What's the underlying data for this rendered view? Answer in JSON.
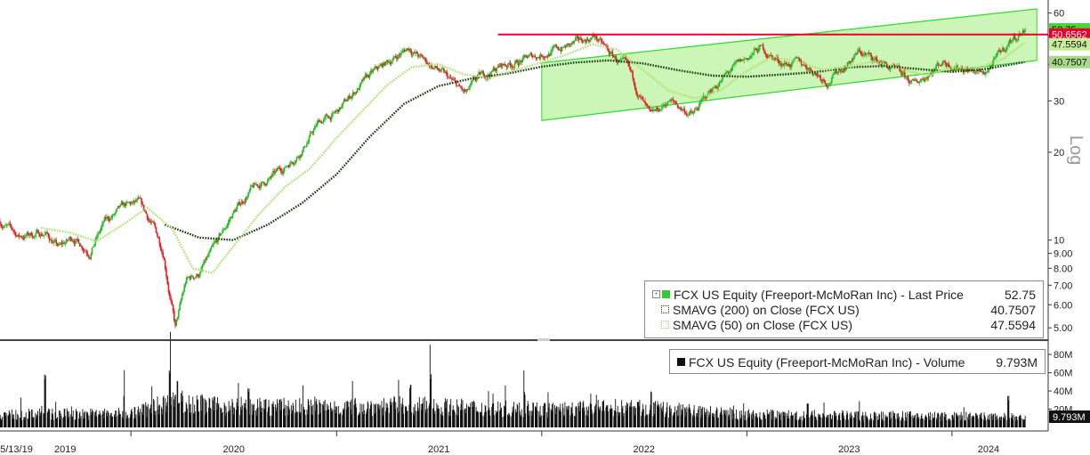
{
  "chart_data": [
    {
      "type": "line",
      "scale": "log",
      "axis_label": "Log",
      "ylim": [
        4.8,
        62
      ],
      "y_ticks": [
        5,
        6,
        7,
        8,
        9,
        10,
        20,
        30,
        40,
        50,
        60
      ],
      "y_tick_labels": [
        "5.00",
        "6.00",
        "7.00",
        "8.00",
        "9.00",
        "10",
        "20",
        "30",
        "40",
        "50",
        "60"
      ],
      "x_start_label": "05/13/19",
      "x_labels": [
        "2019",
        "2020",
        "2021",
        "2022",
        "2023",
        "2024"
      ],
      "x_range": [
        "2019-05-13",
        "2024-05-10"
      ],
      "resistance_line": {
        "value": 50.6562,
        "label": "50.6562",
        "from": "2021-10-15",
        "color": "#e8002a"
      },
      "channel": {
        "from": "2022-01-01",
        "upper": [
          [
            "2022-01-01",
            40.5
          ],
          [
            "2024-05-31",
            62.0
          ]
        ],
        "lower": [
          [
            "2022-01-01",
            25.7
          ],
          [
            "2024-05-31",
            41.3
          ]
        ],
        "fill": "#ccf5b8",
        "stroke": "#33dd33"
      },
      "badges": [
        {
          "value": 52.75,
          "label": "52.75",
          "color": "#4dd43a"
        },
        {
          "value": 50.6562,
          "label": "50.6562",
          "color": "#e8002a"
        },
        {
          "value": 47.5594,
          "label": "47.5594",
          "color": "#c9ee9a"
        },
        {
          "value": 40.7507,
          "label": "40.7507",
          "color": "#a9d98a"
        }
      ],
      "price_path": [
        [
          "2019-05-13",
          11.6
        ],
        [
          "2019-06-15",
          10.3
        ],
        [
          "2019-08-01",
          10.6
        ],
        [
          "2019-08-26",
          9.4
        ],
        [
          "2019-09-20",
          10.2
        ],
        [
          "2019-10-20",
          9.2
        ],
        [
          "2019-11-15",
          11.5
        ],
        [
          "2019-12-20",
          12.9
        ],
        [
          "2020-01-15",
          13.3
        ],
        [
          "2020-02-10",
          11.1
        ],
        [
          "2020-02-28",
          9.1
        ],
        [
          "2020-03-10",
          6.6
        ],
        [
          "2020-03-20",
          5.0
        ],
        [
          "2020-04-08",
          7.2
        ],
        [
          "2020-05-01",
          7.7
        ],
        [
          "2020-06-01",
          9.6
        ],
        [
          "2020-07-01",
          12.4
        ],
        [
          "2020-08-01",
          14.8
        ],
        [
          "2020-09-01",
          16.0
        ],
        [
          "2020-10-01",
          17.8
        ],
        [
          "2020-11-01",
          20.6
        ],
        [
          "2020-12-01",
          25.4
        ],
        [
          "2021-01-01",
          27.1
        ],
        [
          "2021-02-01",
          32.2
        ],
        [
          "2021-03-01",
          36.4
        ],
        [
          "2021-04-01",
          40.5
        ],
        [
          "2021-05-10",
          45.8
        ],
        [
          "2021-06-01",
          41.8
        ],
        [
          "2021-07-01",
          38.2
        ],
        [
          "2021-08-19",
          31.4
        ],
        [
          "2021-09-10",
          35.6
        ],
        [
          "2021-10-20",
          39.6
        ],
        [
          "2021-11-20",
          40.9
        ],
        [
          "2022-01-01",
          43.5
        ],
        [
          "2022-03-01",
          46.9
        ],
        [
          "2022-04-05",
          50.2
        ],
        [
          "2022-05-01",
          43.6
        ],
        [
          "2022-06-01",
          38.9
        ],
        [
          "2022-07-14",
          25.9
        ],
        [
          "2022-08-15",
          30.1
        ],
        [
          "2022-09-27",
          26.8
        ],
        [
          "2022-11-01",
          33.2
        ],
        [
          "2022-12-01",
          37.6
        ],
        [
          "2023-01-25",
          45.5
        ],
        [
          "2023-03-01",
          40.8
        ],
        [
          "2023-04-15",
          39.9
        ],
        [
          "2023-05-25",
          35.2
        ],
        [
          "2023-07-20",
          44.1
        ],
        [
          "2023-09-01",
          40.2
        ],
        [
          "2023-10-26",
          34.0
        ],
        [
          "2023-12-15",
          41.2
        ],
        [
          "2024-01-20",
          39.3
        ],
        [
          "2024-02-25",
          36.9
        ],
        [
          "2024-03-15",
          40.5
        ],
        [
          "2024-04-15",
          48.5
        ],
        [
          "2024-05-10",
          52.75
        ]
      ],
      "sma200_path": [
        [
          "2020-03-01",
          11.3
        ],
        [
          "2020-05-01",
          10.2
        ],
        [
          "2020-07-01",
          10.0
        ],
        [
          "2020-09-01",
          11.3
        ],
        [
          "2020-11-01",
          13.4
        ],
        [
          "2021-01-01",
          16.8
        ],
        [
          "2021-03-01",
          22.6
        ],
        [
          "2021-05-01",
          29.3
        ],
        [
          "2021-07-01",
          33.7
        ],
        [
          "2021-09-01",
          35.9
        ],
        [
          "2021-11-01",
          37.2
        ],
        [
          "2022-01-01",
          39.3
        ],
        [
          "2022-03-01",
          40.6
        ],
        [
          "2022-05-01",
          41.3
        ],
        [
          "2022-07-01",
          40.3
        ],
        [
          "2022-09-01",
          38.2
        ],
        [
          "2022-11-01",
          36.6
        ],
        [
          "2023-01-01",
          36.3
        ],
        [
          "2023-03-01",
          36.9
        ],
        [
          "2023-05-01",
          37.6
        ],
        [
          "2023-07-01",
          39.1
        ],
        [
          "2023-09-01",
          39.5
        ],
        [
          "2023-11-01",
          38.6
        ],
        [
          "2024-01-01",
          37.7
        ],
        [
          "2024-03-01",
          38.6
        ],
        [
          "2024-05-10",
          40.7507
        ]
      ],
      "sma50_path": [
        [
          "2019-07-25",
          11.0
        ],
        [
          "2019-09-15",
          10.6
        ],
        [
          "2019-11-01",
          9.9
        ],
        [
          "2019-12-15",
          11.2
        ],
        [
          "2020-01-30",
          12.9
        ],
        [
          "2020-03-15",
          10.9
        ],
        [
          "2020-04-20",
          8.0
        ],
        [
          "2020-05-25",
          7.7
        ],
        [
          "2020-07-01",
          9.5
        ],
        [
          "2020-08-15",
          12.2
        ],
        [
          "2020-10-01",
          15.2
        ],
        [
          "2020-11-15",
          17.6
        ],
        [
          "2021-01-01",
          22.4
        ],
        [
          "2021-02-15",
          27.6
        ],
        [
          "2021-04-01",
          34.0
        ],
        [
          "2021-05-15",
          39.2
        ],
        [
          "2021-07-01",
          40.1
        ],
        [
          "2021-08-15",
          37.0
        ],
        [
          "2021-10-01",
          35.9
        ],
        [
          "2021-11-15",
          38.3
        ],
        [
          "2022-01-01",
          40.6
        ],
        [
          "2022-02-15",
          43.3
        ],
        [
          "2022-04-01",
          46.9
        ],
        [
          "2022-05-15",
          45.0
        ],
        [
          "2022-07-01",
          38.2
        ],
        [
          "2022-08-15",
          32.5
        ],
        [
          "2022-10-01",
          30.6
        ],
        [
          "2022-11-15",
          32.6
        ],
        [
          "2023-01-01",
          37.9
        ],
        [
          "2023-02-15",
          42.5
        ],
        [
          "2023-04-01",
          40.9
        ],
        [
          "2023-05-15",
          38.4
        ],
        [
          "2023-07-01",
          39.3
        ],
        [
          "2023-08-15",
          41.0
        ],
        [
          "2023-10-01",
          38.7
        ],
        [
          "2023-11-15",
          36.7
        ],
        [
          "2024-01-01",
          39.0
        ],
        [
          "2024-02-15",
          38.8
        ],
        [
          "2024-04-01",
          41.8
        ],
        [
          "2024-05-10",
          47.5594
        ]
      ],
      "series": [
        {
          "name": "FCX US Equity (Freeport-McMoRan Inc) - Last Price",
          "value_label": "52.75",
          "color": "#22cc22"
        },
        {
          "name": "SMAVG (200)  on Close (FCX US)",
          "value_label": "40.7507",
          "color": "#1e3a10"
        },
        {
          "name": "SMAVG (50)  on Close (FCX US)",
          "value_label": "47.5594",
          "color": "#b0e070"
        }
      ]
    },
    {
      "type": "bar",
      "ylim": [
        0,
        85
      ],
      "y_ticks": [
        0,
        20,
        40,
        60,
        80
      ],
      "y_tick_labels": [
        "0",
        "20M",
        "40M",
        "60M",
        "80M"
      ],
      "last_label": "9.793M",
      "base_level_m": [
        [
          "2019-05-13",
          14
        ],
        [
          "2020-01-01",
          15
        ],
        [
          "2020-03-20",
          30
        ],
        [
          "2020-06-01",
          23
        ],
        [
          "2021-01-01",
          22
        ],
        [
          "2021-05-01",
          24
        ],
        [
          "2022-01-01",
          19
        ],
        [
          "2022-06-01",
          22
        ],
        [
          "2023-01-01",
          14
        ],
        [
          "2024-01-01",
          12
        ],
        [
          "2024-05-10",
          11
        ]
      ],
      "spikes_m": [
        [
          "2019-08-01",
          62
        ],
        [
          "2019-12-20",
          40
        ],
        [
          "2020-03-10",
          70
        ],
        [
          "2020-03-23",
          58
        ],
        [
          "2020-07-28",
          45
        ],
        [
          "2021-05-12",
          48
        ],
        [
          "2021-06-17",
          62
        ],
        [
          "2021-12-01",
          42
        ],
        [
          "2022-07-15",
          40
        ],
        [
          "2023-04-19",
          30
        ],
        [
          "2024-04-10",
          35
        ]
      ],
      "series": [
        {
          "name": "FCX US Equity (Freeport-McMoRan Inc) - Volume",
          "value_label": "9.793M",
          "color": "#111111"
        }
      ]
    }
  ]
}
